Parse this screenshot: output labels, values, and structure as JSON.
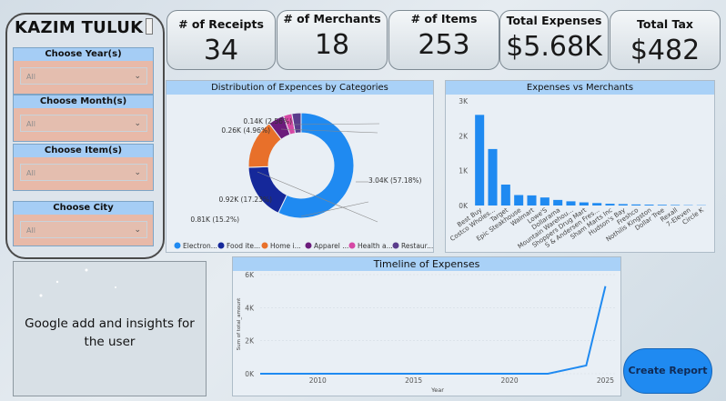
{
  "sidebar": {
    "brand": "KAZIM TULUK",
    "filters": [
      {
        "label": "Choose Year(s)",
        "value": "All"
      },
      {
        "label": "Choose Month(s)",
        "value": "All"
      },
      {
        "label": "Choose Item(s)",
        "value": "All"
      },
      {
        "label": "Choose City",
        "value": "All"
      }
    ]
  },
  "kpis": [
    {
      "title": "# of Receipts",
      "value": "34"
    },
    {
      "title": "# of Merchants",
      "value": "18"
    },
    {
      "title": "# of Items",
      "value": "253"
    },
    {
      "title": "Total Expenses",
      "value": "$5.68K"
    },
    {
      "title": "Total Tax",
      "value": "$482"
    }
  ],
  "ad_text": "Google add and insights for the user",
  "create_report_label": "Create Report",
  "chart_data": [
    {
      "type": "pie",
      "title": "Distribution of Expences by Categories",
      "slices": [
        {
          "label": "Electron...",
          "value": 3.04,
          "display": "3.04K (57.18%)",
          "color": "#1f8af1"
        },
        {
          "label": "Food ite...",
          "value": 0.92,
          "display": "0.92K (17.23%)",
          "color": "#15289a"
        },
        {
          "label": "Home i...",
          "value": 0.81,
          "display": "0.81K (15.2%)",
          "color": "#e8702a"
        },
        {
          "label": "Apparel ...",
          "value": 0.26,
          "display": "0.26K (4.96%)",
          "color": "#6c1c7c"
        },
        {
          "label": "Health a...",
          "value": 0.14,
          "display": "0.14K (2.56%)",
          "color": "#d648a5"
        },
        {
          "label": "Restaur...",
          "value": 0.15,
          "display": "",
          "color": "#5a3c8c"
        }
      ]
    },
    {
      "type": "bar",
      "title": "Expenses vs Merchants",
      "categories": [
        "Best Buy",
        "Costco Wholes...",
        "Target",
        "Epic Steakhouse",
        "Walmart",
        "Lowe'S",
        "Dollarama",
        "Mountain Warehou...",
        "Shoppers Drug Mart",
        "S & Andersen Fres...",
        "Sham Marts Inc",
        "Hudson's Bay",
        "Freshco",
        "Nothilis Kingston",
        "Dollar Tree",
        "Rexall",
        "7-Eleven",
        "Circle K"
      ],
      "values": [
        2600,
        1620,
        600,
        300,
        290,
        230,
        160,
        120,
        90,
        70,
        50,
        40,
        30,
        25,
        20,
        15,
        10,
        8
      ],
      "yticks": [
        "0K",
        "1K",
        "2K",
        "3K"
      ],
      "ylim": [
        0,
        3000
      ],
      "color": "#1f8af1"
    },
    {
      "type": "line",
      "title": "Timeline of Expenses",
      "xlabel": "Year",
      "ylabel": "Sum of total_amount",
      "xticks": [
        "2010",
        "2015",
        "2020",
        "2025"
      ],
      "yticks": [
        "0K",
        "2K",
        "4K",
        "6K"
      ],
      "xlim": [
        2007,
        2025.5
      ],
      "ylim": [
        0,
        6000
      ],
      "x": [
        2007,
        2010,
        2015,
        2020,
        2022,
        2024,
        2025
      ],
      "y": [
        0,
        0,
        0,
        0,
        0,
        500,
        5300
      ],
      "color": "#1f8af1"
    }
  ]
}
